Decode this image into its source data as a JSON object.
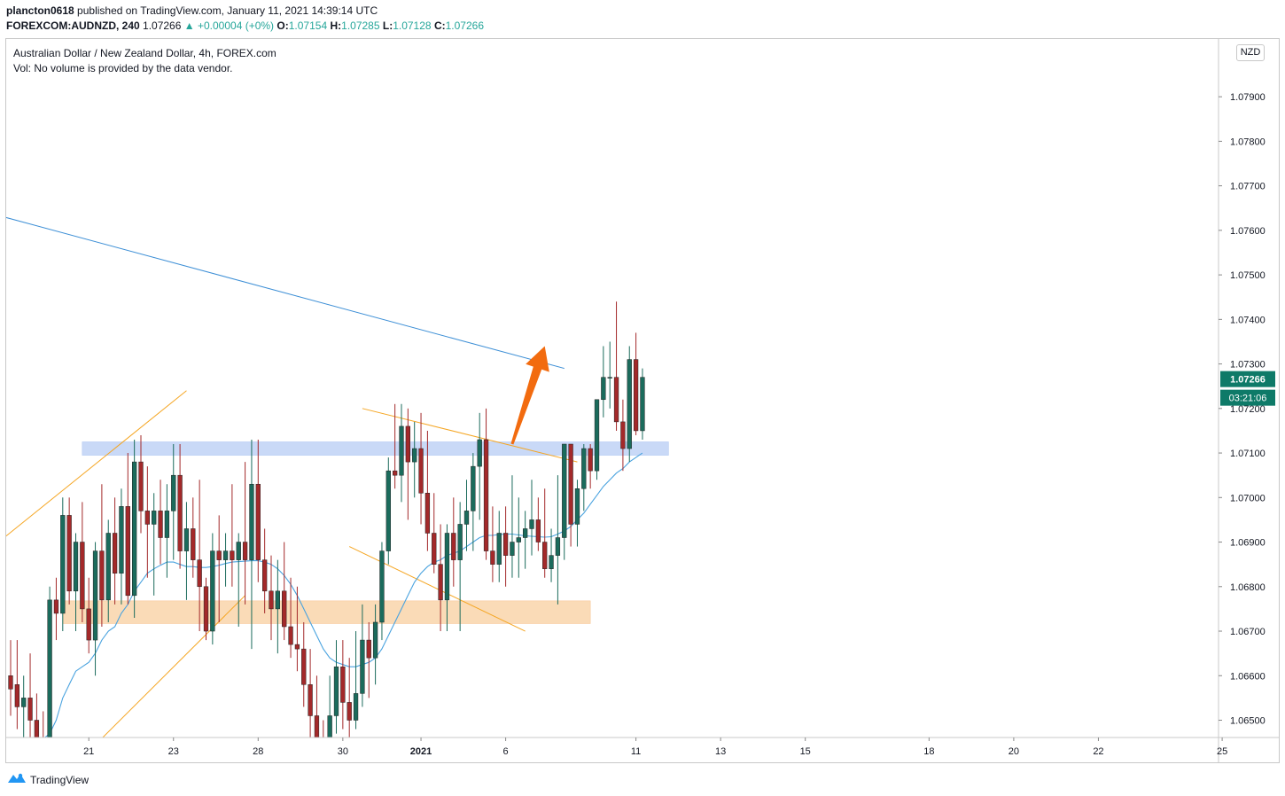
{
  "header": {
    "publisher": "plancton0618",
    "published_text": "published on TradingView.com, January 11, 2021 14:39:14 UTC",
    "symbol": "FOREXCOM:AUDNZD, 240",
    "last": "1.07266",
    "change": "▲ +0.00004 (+0%)",
    "o_label": "O:",
    "o_val": "1.07154",
    "h_label": "H:",
    "h_val": "1.07285",
    "l_label": "L:",
    "l_val": "1.07128",
    "c_label": "C:",
    "c_val": "1.07266"
  },
  "legend": {
    "title": "Australian Dollar / New Zealand Dollar, 4h, FOREX.com",
    "volume_note": "Vol: No volume is provided by the data vendor."
  },
  "currency_label": "NZD",
  "footer": {
    "brand": "TradingView"
  },
  "colors": {
    "up": "#1b6b5c",
    "down": "#a3292a",
    "ma": "#4aa3df",
    "trend_blue": "#3d8fd6",
    "channel": "#f5a623",
    "zone_blue": "#b7cdf5",
    "zone_orange": "#f9cfa0",
    "arrow": "#f26b0f",
    "price_tag": "#0e7a68"
  },
  "chart_data": {
    "type": "candlestick",
    "timeframe": "4h",
    "ylim": [
      1.0645,
      1.0805
    ],
    "y_ticks": [
      "1.06500",
      "1.06600",
      "1.06700",
      "1.06800",
      "1.06900",
      "1.07000",
      "1.07100",
      "1.07200",
      "1.07300",
      "1.07400",
      "1.07500",
      "1.07600",
      "1.07700",
      "1.07800",
      "1.07900"
    ],
    "x_ticks": [
      {
        "label": "21",
        "slot": 12
      },
      {
        "label": "23",
        "slot": 25
      },
      {
        "label": "28",
        "slot": 38
      },
      {
        "label": "30",
        "slot": 51
      },
      {
        "label": "2021",
        "slot": 63,
        "bold": true
      },
      {
        "label": "6",
        "slot": 76
      },
      {
        "label": "11",
        "slot": 96
      },
      {
        "label": "13",
        "slot": 109
      },
      {
        "label": "15",
        "slot": 122
      },
      {
        "label": "18",
        "slot": 141
      },
      {
        "label": "20",
        "slot": 154
      },
      {
        "label": "22",
        "slot": 167
      },
      {
        "label": "25",
        "slot": 186
      }
    ],
    "current_price": "1.07266",
    "countdown": "03:21:06",
    "candles": [
      [
        1.066,
        1.0668,
        1.0651,
        1.0657
      ],
      [
        1.0658,
        1.0668,
        1.0648,
        1.0653
      ],
      [
        1.0653,
        1.066,
        1.0646,
        1.0655
      ],
      [
        1.0655,
        1.0665,
        1.0645,
        1.065
      ],
      [
        1.065,
        1.0656,
        1.0641,
        1.0646
      ],
      [
        1.0646,
        1.0652,
        1.0639,
        1.0643
      ],
      [
        1.0643,
        1.068,
        1.064,
        1.0677
      ],
      [
        1.0677,
        1.0682,
        1.0668,
        1.0674
      ],
      [
        1.0674,
        1.07,
        1.067,
        1.0696
      ],
      [
        1.0696,
        1.07,
        1.0676,
        1.0679
      ],
      [
        1.0679,
        1.0692,
        1.067,
        1.069
      ],
      [
        1.069,
        1.0699,
        1.0672,
        1.0675
      ],
      [
        1.0675,
        1.0682,
        1.0665,
        1.0668
      ],
      [
        1.0668,
        1.069,
        1.066,
        1.0688
      ],
      [
        1.0688,
        1.0703,
        1.0671,
        1.0677
      ],
      [
        1.0677,
        1.0695,
        1.0672,
        1.0692
      ],
      [
        1.0692,
        1.07,
        1.0676,
        1.0683
      ],
      [
        1.0683,
        1.0702,
        1.0676,
        1.0698
      ],
      [
        1.0698,
        1.071,
        1.0676,
        1.0678
      ],
      [
        1.0678,
        1.0713,
        1.0673,
        1.0708
      ],
      [
        1.0708,
        1.0714,
        1.0692,
        1.0697
      ],
      [
        1.0697,
        1.0707,
        1.0682,
        1.0694
      ],
      [
        1.0694,
        1.0701,
        1.0678,
        1.0697
      ],
      [
        1.0697,
        1.0704,
        1.0685,
        1.0691
      ],
      [
        1.0691,
        1.0703,
        1.0682,
        1.0697
      ],
      [
        1.0697,
        1.0712,
        1.0686,
        1.0705
      ],
      [
        1.0705,
        1.0712,
        1.0684,
        1.0688
      ],
      [
        1.0688,
        1.0699,
        1.0677,
        1.0693
      ],
      [
        1.0693,
        1.07,
        1.0682,
        1.0686
      ],
      [
        1.0686,
        1.0704,
        1.067,
        1.068
      ],
      [
        1.068,
        1.0682,
        1.0668,
        1.067
      ],
      [
        1.067,
        1.0692,
        1.0667,
        1.0688
      ],
      [
        1.0688,
        1.0696,
        1.0672,
        1.0686
      ],
      [
        1.0686,
        1.0692,
        1.068,
        1.0688
      ],
      [
        1.0688,
        1.0703,
        1.068,
        1.0686
      ],
      [
        1.0686,
        1.0692,
        1.0671,
        1.069
      ],
      [
        1.069,
        1.0708,
        1.0676,
        1.0686
      ],
      [
        1.0686,
        1.0713,
        1.0666,
        1.0703
      ],
      [
        1.0703,
        1.0713,
        1.0681,
        1.0686
      ],
      [
        1.0686,
        1.0693,
        1.0674,
        1.0679
      ],
      [
        1.0679,
        1.0687,
        1.0668,
        1.0675
      ],
      [
        1.0675,
        1.0686,
        1.0665,
        1.0679
      ],
      [
        1.0679,
        1.069,
        1.0668,
        1.0671
      ],
      [
        1.0671,
        1.0682,
        1.0664,
        1.0667
      ],
      [
        1.0667,
        1.068,
        1.0661,
        1.0666
      ],
      [
        1.0666,
        1.0672,
        1.0653,
        1.0658
      ],
      [
        1.0658,
        1.0666,
        1.0646,
        1.0651
      ],
      [
        1.0651,
        1.066,
        1.064,
        1.0645
      ],
      [
        1.0645,
        1.065,
        1.0635,
        1.064
      ],
      [
        1.064,
        1.066,
        1.0636,
        1.0651
      ],
      [
        1.0651,
        1.0668,
        1.0647,
        1.0662
      ],
      [
        1.0662,
        1.0668,
        1.0648,
        1.0654
      ],
      [
        1.0654,
        1.0664,
        1.0645,
        1.065
      ],
      [
        1.065,
        1.067,
        1.0648,
        1.0656
      ],
      [
        1.0656,
        1.0676,
        1.0653,
        1.0668
      ],
      [
        1.0668,
        1.0672,
        1.0655,
        1.0664
      ],
      [
        1.0664,
        1.0676,
        1.0658,
        1.0672
      ],
      [
        1.0672,
        1.069,
        1.0668,
        1.0688
      ],
      [
        1.0688,
        1.0709,
        1.0685,
        1.0706
      ],
      [
        1.0706,
        1.0721,
        1.0702,
        1.0705
      ],
      [
        1.0705,
        1.0721,
        1.0699,
        1.0716
      ],
      [
        1.0716,
        1.072,
        1.0695,
        1.0708
      ],
      [
        1.0708,
        1.0717,
        1.07,
        1.0711
      ],
      [
        1.0711,
        1.0719,
        1.0694,
        1.0701
      ],
      [
        1.0701,
        1.0715,
        1.0688,
        1.0692
      ],
      [
        1.0692,
        1.0701,
        1.0683,
        1.0685
      ],
      [
        1.0685,
        1.0694,
        1.067,
        1.0677
      ],
      [
        1.0677,
        1.0694,
        1.067,
        1.0692
      ],
      [
        1.0692,
        1.07,
        1.068,
        1.0686
      ],
      [
        1.0686,
        1.0699,
        1.067,
        1.0694
      ],
      [
        1.0694,
        1.0704,
        1.0688,
        1.0697
      ],
      [
        1.0697,
        1.071,
        1.0688,
        1.0707
      ],
      [
        1.0707,
        1.0719,
        1.0695,
        1.0713
      ],
      [
        1.0713,
        1.072,
        1.0686,
        1.0688
      ],
      [
        1.0688,
        1.0698,
        1.0681,
        1.0685
      ],
      [
        1.0685,
        1.0697,
        1.0681,
        1.0692
      ],
      [
        1.0692,
        1.0698,
        1.068,
        1.0687
      ],
      [
        1.0687,
        1.0705,
        1.0682,
        1.069
      ],
      [
        1.069,
        1.07,
        1.0682,
        1.0691
      ],
      [
        1.0691,
        1.0697,
        1.0684,
        1.0693
      ],
      [
        1.0693,
        1.0704,
        1.0687,
        1.0695
      ],
      [
        1.0695,
        1.07,
        1.0688,
        1.069
      ],
      [
        1.069,
        1.0702,
        1.0682,
        1.0684
      ],
      [
        1.0684,
        1.0693,
        1.0681,
        1.0687
      ],
      [
        1.0687,
        1.0705,
        1.0676,
        1.0691
      ],
      [
        1.0691,
        1.0712,
        1.0686,
        1.0712
      ],
      [
        1.0712,
        1.0712,
        1.0689,
        1.0694
      ],
      [
        1.0694,
        1.0704,
        1.0689,
        1.0702
      ],
      [
        1.0702,
        1.0712,
        1.0697,
        1.0711
      ],
      [
        1.0711,
        1.0712,
        1.0702,
        1.0706
      ],
      [
        1.0706,
        1.0722,
        1.0704,
        1.0722
      ],
      [
        1.0722,
        1.0734,
        1.0718,
        1.0727
      ],
      [
        1.0727,
        1.0735,
        1.072,
        1.0727
      ],
      [
        1.0727,
        1.0744,
        1.0715,
        1.0717
      ],
      [
        1.0717,
        1.0722,
        1.0706,
        1.0711
      ],
      [
        1.0711,
        1.0734,
        1.0708,
        1.0731
      ],
      [
        1.0731,
        1.0737,
        1.0714,
        1.0715
      ],
      [
        1.0715,
        1.0729,
        1.0713,
        1.0727
      ]
    ],
    "moving_average": [
      1.0644,
      1.06445,
      1.0645,
      1.06452,
      1.06455,
      1.06458,
      1.0647,
      1.065,
      1.0655,
      1.0658,
      1.0661,
      1.0662,
      1.0663,
      1.0665,
      1.0668,
      1.067,
      1.0671,
      1.0674,
      1.0676,
      1.0679,
      1.0681,
      1.0683,
      1.0684,
      1.06848,
      1.06855,
      1.06855,
      1.0685,
      1.06845,
      1.06845,
      1.06843,
      1.06843,
      1.06845,
      1.06848,
      1.06852,
      1.06855,
      1.06856,
      1.06857,
      1.06858,
      1.06858,
      1.06855,
      1.0685,
      1.0684,
      1.06825,
      1.06805,
      1.0678,
      1.0675,
      1.0672,
      1.0669,
      1.0666,
      1.0664,
      1.0663,
      1.06625,
      1.0662,
      1.0662,
      1.06625,
      1.0663,
      1.0664,
      1.0666,
      1.0669,
      1.0672,
      1.0675,
      1.0678,
      1.0681,
      1.0683,
      1.06845,
      1.06855,
      1.0686,
      1.0687,
      1.06875,
      1.0688,
      1.0689,
      1.069,
      1.0691,
      1.06915,
      1.06915,
      1.06917,
      1.06918,
      1.06918,
      1.06916,
      1.06914,
      1.06913,
      1.06912,
      1.06911,
      1.06912,
      1.06918,
      1.06925,
      1.06935,
      1.0695,
      1.06965,
      1.06985,
      1.07005,
      1.07025,
      1.0704,
      1.07055,
      1.07065,
      1.0708,
      1.0709,
      1.071
    ],
    "drawings": {
      "trendline": [
        [
          -1,
          1.0763
        ],
        [
          85,
          1.0729
        ]
      ],
      "channel_lines": [
        [
          [
            -1,
            1.0691
          ],
          [
            27,
            1.0724
          ]
        ],
        [
          [
            12,
            1.0643
          ],
          [
            36,
            1.0678
          ]
        ],
        [
          [
            54,
            1.072
          ],
          [
            87,
            1.0708
          ]
        ],
        [
          [
            52,
            1.0689
          ],
          [
            79,
            1.067
          ]
        ]
      ],
      "zones": [
        {
          "color": "blue",
          "x0": 11,
          "x1": 101,
          "y0": 1.07095,
          "y1": 1.07125
        },
        {
          "color": "orange",
          "x0": 8,
          "x1": 89,
          "y0": 1.06717,
          "y1": 1.06768
        }
      ],
      "arrow": {
        "from": [
          77,
          1.0712
        ],
        "to": [
          82,
          1.0734
        ]
      }
    }
  }
}
